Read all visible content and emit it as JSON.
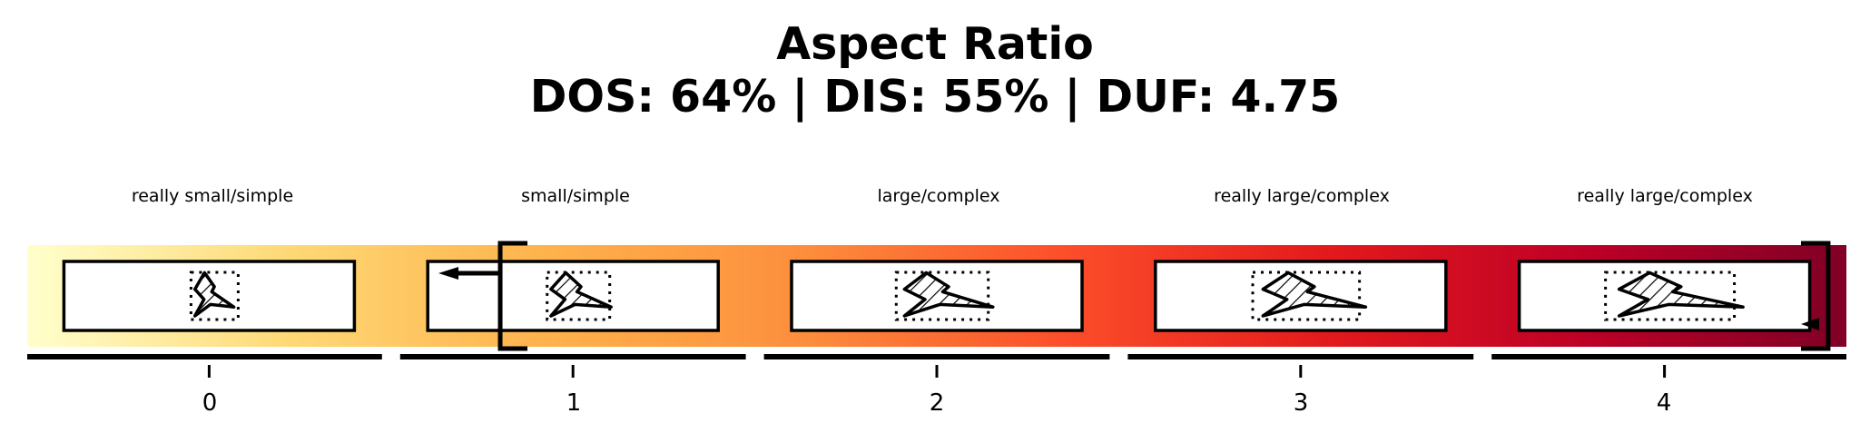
{
  "title": "Aspect Ratio",
  "subtitle": "DOS: 64% | DIS: 55% | DUF: 4.75",
  "colors": {
    "gradient": [
      "#ffffcc",
      "#fed976",
      "#feb24c",
      "#fd8d3c",
      "#fc4e2a",
      "#e31a1c",
      "#bd0026",
      "#800026"
    ]
  },
  "levels": [
    {
      "index": 0,
      "tick": "0",
      "label": "really small/simple"
    },
    {
      "index": 1,
      "tick": "1",
      "label": "small/simple"
    },
    {
      "index": 2,
      "tick": "2",
      "label": "large/complex"
    },
    {
      "index": 3,
      "tick": "3",
      "label": "really large/complex"
    },
    {
      "index": 4,
      "tick": "4",
      "label": "really large/complex"
    }
  ],
  "markers": {
    "bracket_left_position": 0.8,
    "bracket_right_position": 4.45
  }
}
